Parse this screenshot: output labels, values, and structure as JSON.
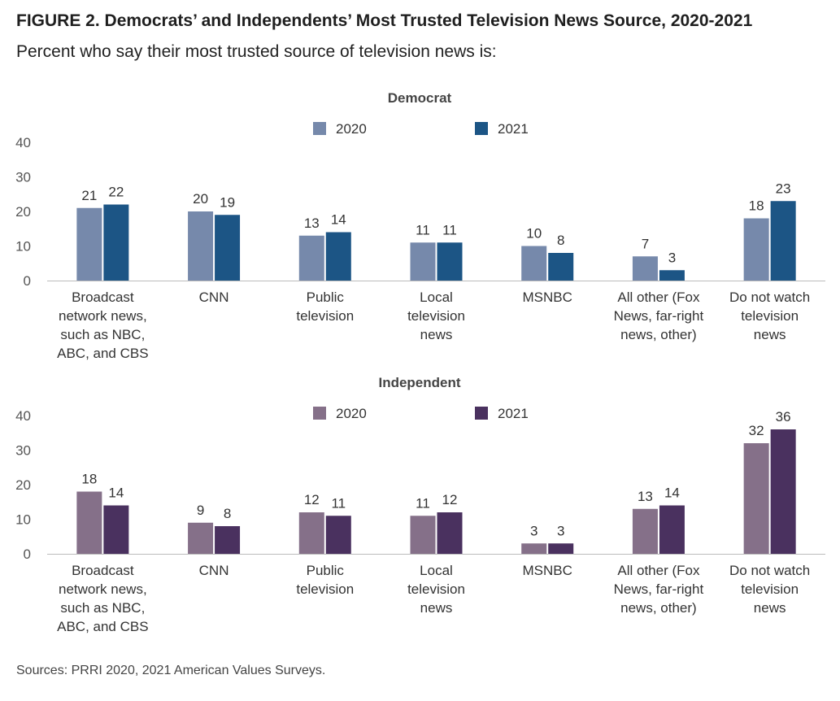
{
  "figure": {
    "label": "FIGURE 2.",
    "title": "Democrats’ and Independents’ Most Trusted Television News Source, 2020-2021",
    "subtitle": "Percent who say their most trusted source of television news is:",
    "source": "Sources: PRRI 2020, 2021 American Values Surveys."
  },
  "chart_data": [
    {
      "type": "bar",
      "title": "Democrat",
      "categories": [
        [
          "Broadcast",
          "network news,",
          "such as NBC,",
          "ABC, and CBS"
        ],
        [
          "CNN"
        ],
        [
          "Public",
          "television"
        ],
        [
          "Local",
          "television",
          "news"
        ],
        [
          "MSNBC"
        ],
        [
          "All other (Fox",
          "News, far-right",
          "news, other)"
        ],
        [
          "Do not watch",
          "television",
          "news"
        ]
      ],
      "series": [
        {
          "name": "2020",
          "values": [
            21,
            20,
            13,
            11,
            10,
            7,
            18
          ],
          "color": "#7689ab"
        },
        {
          "name": "2021",
          "values": [
            22,
            19,
            14,
            11,
            8,
            3,
            23
          ],
          "color": "#1c5585"
        }
      ],
      "ylim": [
        0,
        40
      ],
      "yticks": [
        0,
        10,
        20,
        30,
        40
      ],
      "legend": "top-center",
      "grid": false
    },
    {
      "type": "bar",
      "title": "Independent",
      "categories": [
        [
          "Broadcast",
          "network news,",
          "such as NBC,",
          "ABC, and CBS"
        ],
        [
          "CNN"
        ],
        [
          "Public",
          "television"
        ],
        [
          "Local",
          "television",
          "news"
        ],
        [
          "MSNBC"
        ],
        [
          "All other (Fox",
          "News, far-right",
          "news, other)"
        ],
        [
          "Do not watch",
          "television",
          "news"
        ]
      ],
      "series": [
        {
          "name": "2020",
          "values": [
            18,
            9,
            12,
            11,
            3,
            13,
            32
          ],
          "color": "#857089"
        },
        {
          "name": "2021",
          "values": [
            14,
            8,
            11,
            12,
            3,
            14,
            36
          ],
          "color": "#4a315f"
        }
      ],
      "ylim": [
        0,
        40
      ],
      "yticks": [
        0,
        10,
        20,
        30,
        40
      ],
      "legend": "top-center",
      "grid": false
    }
  ]
}
